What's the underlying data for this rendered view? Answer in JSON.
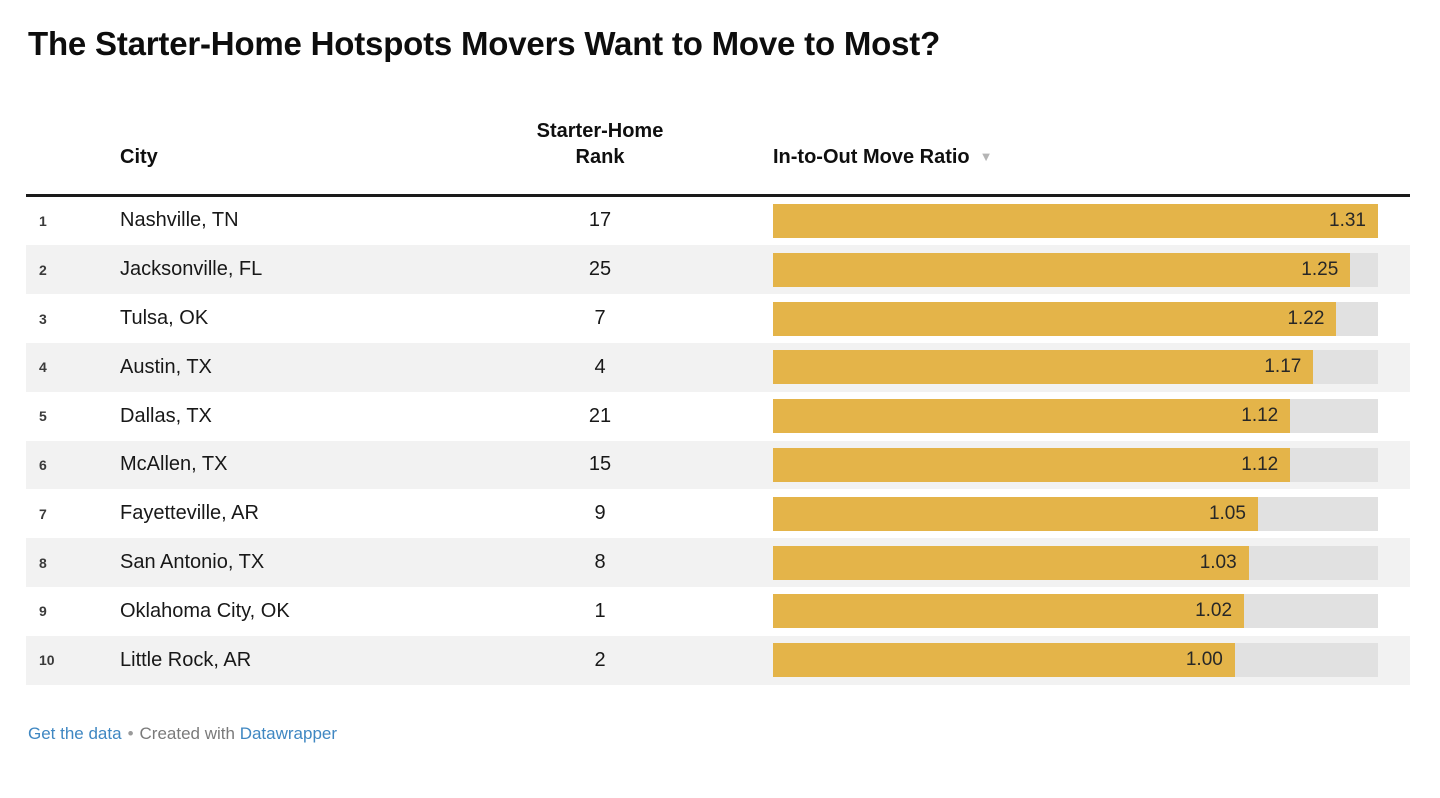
{
  "title": "The Starter-Home Hotspots Movers Want to Move to Most?",
  "columns": {
    "city": "City",
    "rank_line1": "Starter-Home",
    "rank_line2": "Rank",
    "ratio": "In-to-Out Move Ratio",
    "sort_indicator": "▼"
  },
  "rows": [
    {
      "num": "1",
      "city": "Nashville, TN",
      "rank": "17",
      "ratio_label": "1.31",
      "ratio": 1.31
    },
    {
      "num": "2",
      "city": "Jacksonville, FL",
      "rank": "25",
      "ratio_label": "1.25",
      "ratio": 1.25
    },
    {
      "num": "3",
      "city": "Tulsa, OK",
      "rank": "7",
      "ratio_label": "1.22",
      "ratio": 1.22
    },
    {
      "num": "4",
      "city": "Austin, TX",
      "rank": "4",
      "ratio_label": "1.17",
      "ratio": 1.17
    },
    {
      "num": "5",
      "city": "Dallas, TX",
      "rank": "21",
      "ratio_label": "1.12",
      "ratio": 1.12
    },
    {
      "num": "6",
      "city": "McAllen, TX",
      "rank": "15",
      "ratio_label": "1.12",
      "ratio": 1.12
    },
    {
      "num": "7",
      "city": "Fayetteville, AR",
      "rank": "9",
      "ratio_label": "1.05",
      "ratio": 1.05
    },
    {
      "num": "8",
      "city": "San Antonio, TX",
      "rank": "8",
      "ratio_label": "1.03",
      "ratio": 1.03
    },
    {
      "num": "9",
      "city": "Oklahoma City, OK",
      "rank": "1",
      "ratio_label": "1.02",
      "ratio": 1.02
    },
    {
      "num": "10",
      "city": "Little Rock, AR",
      "rank": "2",
      "ratio_label": "1.00",
      "ratio": 1.0
    }
  ],
  "footer": {
    "get_data": "Get the data",
    "separator": "•",
    "created_with": "Created with",
    "brand": "Datawrapper"
  },
  "colors": {
    "bar": "#e4b449",
    "track": "#e1e1e1",
    "stripe": "#f2f2f2",
    "link": "#3f87c2",
    "rule": "#1a1a1a"
  },
  "chart_data": {
    "type": "bar",
    "orientation": "horizontal",
    "title": "The Starter-Home Hotspots Movers Want to Move to Most?",
    "categories": [
      "Nashville, TN",
      "Jacksonville, FL",
      "Tulsa, OK",
      "Austin, TX",
      "Dallas, TX",
      "McAllen, TX",
      "Fayetteville, AR",
      "San Antonio, TX",
      "Oklahoma City, OK",
      "Little Rock, AR"
    ],
    "row_numbers": [
      1,
      2,
      3,
      4,
      5,
      6,
      7,
      8,
      9,
      10
    ],
    "series": [
      {
        "name": "Starter-Home Rank",
        "values": [
          17,
          25,
          7,
          4,
          21,
          15,
          9,
          8,
          1,
          2
        ]
      },
      {
        "name": "In-to-Out Move Ratio",
        "values": [
          1.31,
          1.25,
          1.22,
          1.17,
          1.12,
          1.12,
          1.05,
          1.03,
          1.02,
          1.0
        ]
      }
    ],
    "bar_series": "In-to-Out Move Ratio",
    "xlim": [
      0,
      1.31
    ],
    "sort": "In-to-Out Move Ratio descending",
    "grid": false,
    "legend": "none",
    "data_labels": "inside-end",
    "attribution": "Get the data • Created with Datawrapper"
  }
}
